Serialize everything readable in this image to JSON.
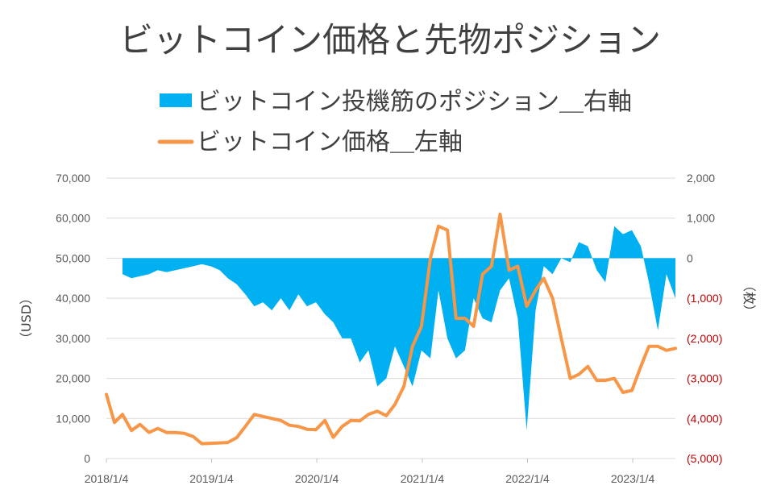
{
  "chart_data": {
    "type": "area+line",
    "title": "ビットコイン価格と先物ポジション",
    "legend": [
      {
        "name": "ビットコイン投機筋のポジション＿右軸",
        "color": "#00b0f0",
        "kind": "area"
      },
      {
        "name": "ビットコイン価格＿左軸",
        "color": "#f79646",
        "kind": "line"
      }
    ],
    "legend_placement": "top",
    "x_tick_labels": [
      "2018/1/4",
      "2019/1/4",
      "2020/1/4",
      "2021/1/4",
      "2022/1/4",
      "2023/1/4"
    ],
    "x_range": [
      "2018/1/4",
      "2023/6/1"
    ],
    "y_left": {
      "label": "（USD）",
      "min": 0,
      "max": 70000,
      "tick_labels": [
        "0",
        "10,000",
        "20,000",
        "30,000",
        "40,000",
        "50,000",
        "60,000",
        "70,000"
      ]
    },
    "y_right": {
      "label": "（枚）",
      "min": -5000,
      "max": 2000,
      "tick_labels": [
        "(5,000)",
        "(4,000)",
        "(3,000)",
        "(2,000)",
        "(1,000)",
        "0",
        "1,000",
        "2,000"
      ]
    },
    "grid": "horizontal",
    "series": [
      {
        "name": "ビットコイン投機筋のポジション＿右軸",
        "axis": "right",
        "x": [
          "2018/3/1",
          "2018/4/1",
          "2018/5/1",
          "2018/6/1",
          "2018/7/1",
          "2018/8/1",
          "2018/9/1",
          "2018/10/1",
          "2018/11/1",
          "2018/12/1",
          "2019/1/1",
          "2019/2/1",
          "2019/3/1",
          "2019/4/1",
          "2019/5/1",
          "2019/6/1",
          "2019/7/1",
          "2019/8/1",
          "2019/9/1",
          "2019/10/1",
          "2019/11/1",
          "2019/12/1",
          "2020/1/1",
          "2020/2/1",
          "2020/3/1",
          "2020/4/1",
          "2020/5/1",
          "2020/6/1",
          "2020/7/1",
          "2020/8/1",
          "2020/9/1",
          "2020/10/1",
          "2020/11/1",
          "2020/12/1",
          "2021/1/1",
          "2021/2/1",
          "2021/3/1",
          "2021/4/1",
          "2021/5/1",
          "2021/6/1",
          "2021/7/1",
          "2021/8/1",
          "2021/9/1",
          "2021/10/1",
          "2021/11/1",
          "2021/12/1",
          "2022/1/1",
          "2022/2/1",
          "2022/3/1",
          "2022/4/1",
          "2022/5/1",
          "2022/6/1",
          "2022/7/1",
          "2022/8/1",
          "2022/9/1",
          "2022/10/1",
          "2022/11/1",
          "2022/12/1",
          "2023/1/1",
          "2023/2/1",
          "2023/3/1",
          "2023/4/1",
          "2023/5/1",
          "2023/6/1"
        ],
        "values": [
          -400,
          -500,
          -450,
          -400,
          -300,
          -350,
          -300,
          -250,
          -200,
          -150,
          -200,
          -300,
          -500,
          -650,
          -900,
          -1200,
          -1100,
          -1300,
          -1000,
          -1300,
          -900,
          -1200,
          -1100,
          -1400,
          -1600,
          -2000,
          -2000,
          -2600,
          -2300,
          -3200,
          -3000,
          -2200,
          -2700,
          -3200,
          -2300,
          -2500,
          -800,
          -2000,
          -2500,
          -2300,
          -1000,
          -1500,
          -1600,
          -800,
          -500,
          -1500,
          -4300,
          -1300,
          -200,
          -400,
          0,
          -100,
          400,
          300,
          -300,
          -600,
          800,
          600,
          700,
          300,
          -600,
          -1800,
          -400,
          -1000
        ]
      },
      {
        "name": "ビットコイン価格＿左軸",
        "axis": "left",
        "x": [
          "2018/1/4",
          "2018/2/1",
          "2018/3/1",
          "2018/4/1",
          "2018/5/1",
          "2018/6/1",
          "2018/7/1",
          "2018/8/1",
          "2018/9/1",
          "2018/10/1",
          "2018/11/1",
          "2018/12/1",
          "2019/1/1",
          "2019/2/1",
          "2019/3/1",
          "2019/4/1",
          "2019/5/1",
          "2019/6/1",
          "2019/7/1",
          "2019/8/1",
          "2019/9/1",
          "2019/10/1",
          "2019/11/1",
          "2019/12/1",
          "2020/1/1",
          "2020/2/1",
          "2020/3/1",
          "2020/4/1",
          "2020/5/1",
          "2020/6/1",
          "2020/7/1",
          "2020/8/1",
          "2020/9/1",
          "2020/10/1",
          "2020/11/1",
          "2020/12/1",
          "2021/1/1",
          "2021/2/1",
          "2021/3/1",
          "2021/4/1",
          "2021/5/1",
          "2021/6/1",
          "2021/7/1",
          "2021/8/1",
          "2021/9/1",
          "2021/10/1",
          "2021/11/1",
          "2021/12/1",
          "2022/1/1",
          "2022/2/1",
          "2022/3/1",
          "2022/4/1",
          "2022/5/1",
          "2022/6/1",
          "2022/7/1",
          "2022/8/1",
          "2022/9/1",
          "2022/10/1",
          "2022/11/1",
          "2022/12/1",
          "2023/1/1",
          "2023/2/1",
          "2023/3/1",
          "2023/4/1",
          "2023/5/1",
          "2023/6/1"
        ],
        "values": [
          16000,
          9000,
          11000,
          7000,
          8500,
          6500,
          7500,
          6500,
          6500,
          6300,
          5500,
          3700,
          3800,
          3900,
          4000,
          5200,
          8000,
          11000,
          10500,
          10000,
          9500,
          8300,
          8000,
          7300,
          7200,
          9500,
          5300,
          8000,
          9500,
          9400,
          11000,
          11800,
          10700,
          13500,
          18000,
          28000,
          33000,
          50000,
          58000,
          57000,
          35000,
          35000,
          33000,
          46000,
          48000,
          61000,
          47000,
          48000,
          38000,
          42000,
          45000,
          40000,
          30000,
          20000,
          21000,
          23000,
          19500,
          19500,
          20000,
          16500,
          17000,
          23000,
          28000,
          28000,
          27000,
          27500
        ]
      }
    ]
  }
}
